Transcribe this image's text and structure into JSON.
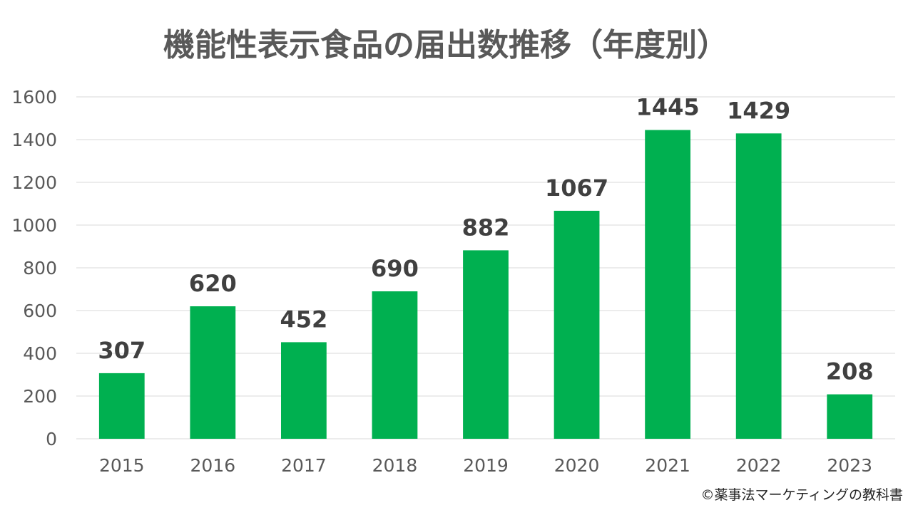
{
  "chart_data": {
    "type": "bar",
    "title": "機能性表示食品の届出数推移（年度別）",
    "categories": [
      "2015",
      "2016",
      "2017",
      "2018",
      "2019",
      "2020",
      "2021",
      "2022",
      "2023"
    ],
    "values": [
      307,
      620,
      452,
      690,
      882,
      1067,
      1445,
      1429,
      208
    ],
    "xlabel": "",
    "ylabel": "",
    "ylim": [
      0,
      1600
    ],
    "yticks": [
      0,
      200,
      400,
      600,
      800,
      1000,
      1200,
      1400,
      1600
    ],
    "grid": true,
    "legend": "none",
    "bar_color": "#00b050"
  },
  "credit": "©薬事法マーケティングの教科書"
}
